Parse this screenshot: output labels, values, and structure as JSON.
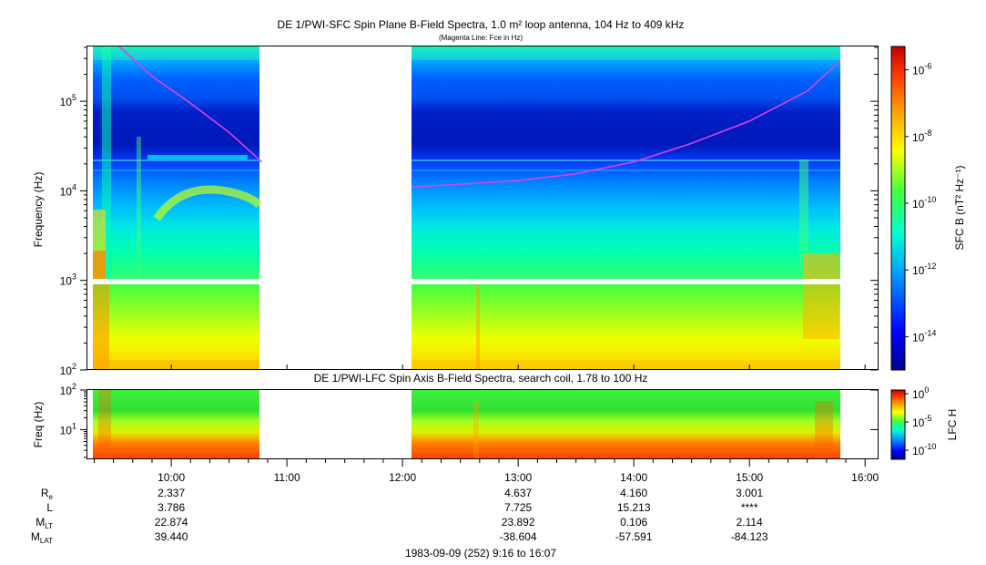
{
  "chart_data": [
    {
      "type": "heatmap",
      "title": "DE 1/PWI-SFC  Spin Plane B-Field Spectra, 1.0 m² loop antenna, 104 Hz to 409 kHz",
      "subtitle": "(Magenta Line: Fce in Hz)",
      "ylabel": "Frequency (Hz)",
      "yscale": "log",
      "ylim": [
        100,
        409000
      ],
      "yticks": [
        {
          "base": "10",
          "exp": "2"
        },
        {
          "base": "10",
          "exp": "3"
        },
        {
          "base": "10",
          "exp": "4"
        },
        {
          "base": "10",
          "exp": "5"
        }
      ],
      "colorbar": {
        "label": "SFC B (nT² Hz⁻¹)",
        "scale": "log",
        "ticks": [
          {
            "base": "10",
            "exp": "-6"
          },
          {
            "base": "10",
            "exp": "-8"
          },
          {
            "base": "10",
            "exp": "-10"
          },
          {
            "base": "10",
            "exp": "-12"
          },
          {
            "base": "10",
            "exp": "-14"
          }
        ]
      },
      "data_gap": [
        "10:49",
        "12:05"
      ],
      "fce_line": {
        "color": "#e040e0",
        "segments": [
          [
            [
              "09:33",
              409000
            ],
            [
              "09:50",
              190000
            ],
            [
              "10:10",
              95000
            ],
            [
              "10:30",
              45000
            ],
            [
              "10:47",
              21000
            ]
          ],
          [
            [
              "12:05",
              11000
            ],
            [
              "13:00",
              13000
            ],
            [
              "13:30",
              15500
            ],
            [
              "14:00",
              21000
            ],
            [
              "14:30",
              34000
            ],
            [
              "15:00",
              60000
            ],
            [
              "15:30",
              130000
            ],
            [
              "15:47",
              280000
            ]
          ]
        ]
      }
    },
    {
      "type": "heatmap",
      "title": "DE 1/PWI-LFC  Spin Axis B-Field Spectra, search coil, 1.78 to 100 Hz",
      "ylabel": "Freq (Hz)",
      "yscale": "log",
      "ylim": [
        1.78,
        100
      ],
      "yticks": [
        {
          "base": "10",
          "exp": "1"
        },
        {
          "base": "10",
          "exp": "2"
        }
      ],
      "colorbar": {
        "label": "LFC H",
        "scale": "log",
        "ticks": [
          {
            "base": "10",
            "exp": "0"
          },
          {
            "base": "10",
            "exp": "-5"
          },
          {
            "base": "10",
            "exp": "-10"
          }
        ]
      }
    }
  ],
  "x_axis": {
    "start": "09:16",
    "end": "16:07",
    "ticks": [
      "10:00",
      "11:00",
      "12:00",
      "13:00",
      "14:00",
      "15:00",
      "16:00"
    ],
    "date_label": "1983-09-09 (252) 9:16 to 16:07"
  },
  "ephemeris": {
    "rows": [
      {
        "label": "R",
        "sub": "e",
        "values": [
          "2.337",
          "",
          "",
          "4.637",
          "4.160",
          "3.001"
        ]
      },
      {
        "label": "L",
        "sub": "",
        "values": [
          "3.786",
          "",
          "",
          "7.725",
          "15.213",
          "****"
        ]
      },
      {
        "label": "M",
        "sub": "LT",
        "values": [
          "22.874",
          "",
          "",
          "23.892",
          "0.106",
          "2.114"
        ]
      },
      {
        "label": "M",
        "sub": "LAT",
        "values": [
          "39.440",
          "",
          "",
          "-38.604",
          "-57.591",
          "-84.123"
        ]
      }
    ]
  }
}
